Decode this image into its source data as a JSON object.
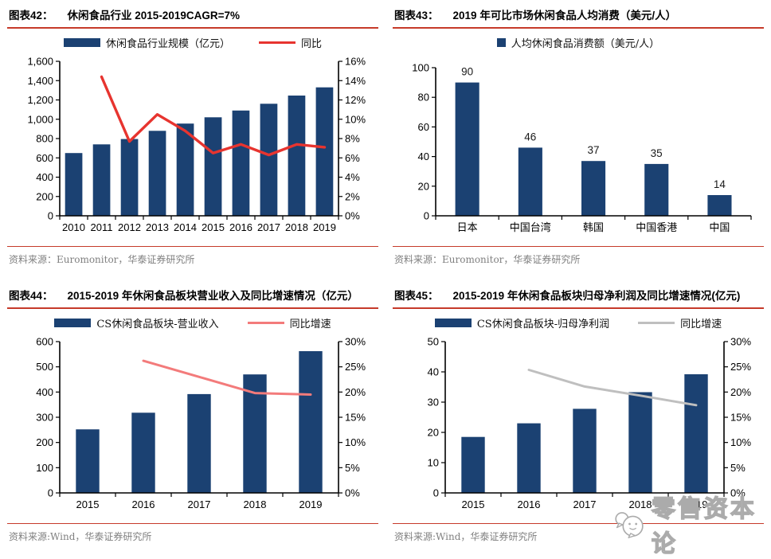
{
  "colors": {
    "navy": "#1B4172",
    "red": "#E7342F",
    "salmon": "#F37B7B",
    "gray_line": "#BFBFBF",
    "rule_red": "#C63A2A",
    "source_text": "#808080"
  },
  "watermark": {
    "text": "零售资本论",
    "icon": "chat-bubble-face-icon",
    "color": "#ABABAB"
  },
  "chart_data": [
    {
      "figure_label": "图表42：",
      "title": "休闲食品行业 2015-2019CAGR=7%",
      "type": "bar+line",
      "categories": [
        "2010",
        "2011",
        "2012",
        "2013",
        "2014",
        "2015",
        "2016",
        "2017",
        "2018",
        "2019"
      ],
      "series": [
        {
          "name": "休闲食品行业规模（亿元）",
          "type": "bar",
          "axis": "left",
          "color_key": "navy",
          "marker": "rect",
          "values": [
            650,
            740,
            795,
            880,
            955,
            1020,
            1090,
            1160,
            1245,
            1330
          ]
        },
        {
          "name": "同比",
          "type": "line",
          "axis": "right",
          "color_key": "red",
          "marker": "line",
          "values": [
            null,
            14.4,
            7.7,
            10.5,
            8.8,
            6.5,
            7.4,
            6.3,
            7.4,
            7.1
          ]
        }
      ],
      "left_axis": {
        "min": 0,
        "max": 1600,
        "step": 200,
        "comma": true
      },
      "right_axis": {
        "min": 0,
        "max": 16,
        "step": 2,
        "suffix": "%"
      },
      "bar_ratio": 0.62,
      "grid": false,
      "legend_position": "top",
      "source": "资料来源：Euromonitor，华泰证券研究所"
    },
    {
      "figure_label": "图表43：",
      "title": "2019 年可比市场休闲食品人均消费（美元/人）",
      "type": "bar",
      "categories": [
        "日本",
        "中国台湾",
        "韩国",
        "中国香港",
        "中国"
      ],
      "series": [
        {
          "name": "人均休闲食品消费额（美元/人）",
          "type": "bar",
          "axis": "left",
          "color_key": "navy",
          "marker": "square",
          "show_labels": true,
          "values": [
            90,
            46,
            37,
            35,
            14
          ]
        }
      ],
      "left_axis": {
        "min": 0,
        "max": 100,
        "step": 20
      },
      "bar_ratio": 0.38,
      "grid": false,
      "legend_position": "top",
      "source": "资料来源：Euromonitor，华泰证券研究所"
    },
    {
      "figure_label": "图表44：",
      "title": "2015-2019 年休闲食品板块营业收入及同比增速情况（亿元）",
      "type": "bar+line",
      "categories": [
        "2015",
        "2016",
        "2017",
        "2018",
        "2019"
      ],
      "series": [
        {
          "name": "CS休闲食品板块-营业收入",
          "type": "bar",
          "axis": "left",
          "color_key": "navy",
          "marker": "rect",
          "values": [
            252,
            318,
            392,
            470,
            562
          ]
        },
        {
          "name": "同比增速",
          "type": "line",
          "axis": "right",
          "color_key": "salmon",
          "marker": "line",
          "values": [
            null,
            26.2,
            23.0,
            19.8,
            19.5
          ]
        }
      ],
      "left_axis": {
        "min": 0,
        "max": 600,
        "step": 100
      },
      "right_axis": {
        "min": 0,
        "max": 30,
        "step": 5,
        "suffix": "%"
      },
      "bar_ratio": 0.42,
      "grid": false,
      "legend_position": "top",
      "source": "资料来源:Wind，华泰证券研究所"
    },
    {
      "figure_label": "图表45：",
      "title": "2015-2019 年休闲食品板块归母净利润及同比增速情况(亿元)",
      "type": "bar+line",
      "categories": [
        "2015",
        "2016",
        "2017",
        "2018",
        "2019"
      ],
      "series": [
        {
          "name": "CS休闲食品板块-归母净利润",
          "type": "bar",
          "axis": "left",
          "color_key": "navy",
          "marker": "rect",
          "values": [
            18.5,
            23,
            27.8,
            33.3,
            39.2
          ]
        },
        {
          "name": "同比增速",
          "type": "line",
          "axis": "right",
          "color_key": "gray_line",
          "marker": "line",
          "values": [
            null,
            24.4,
            21.1,
            19.3,
            17.4
          ]
        }
      ],
      "left_axis": {
        "min": 0,
        "max": 50,
        "step": 10
      },
      "right_axis": {
        "min": 0,
        "max": 30,
        "step": 5,
        "suffix": "%"
      },
      "bar_ratio": 0.42,
      "grid": false,
      "legend_position": "top",
      "source": "资料来源:Wind，华泰证券研究所"
    }
  ]
}
